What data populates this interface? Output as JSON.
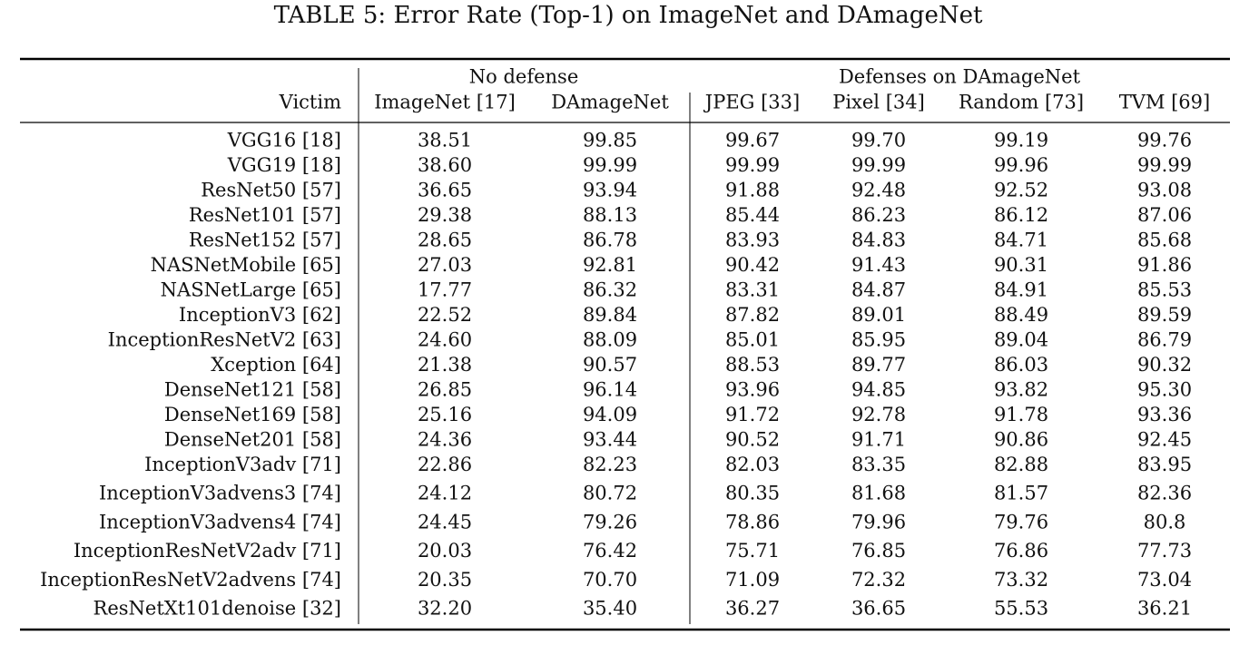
{
  "title": "TABLE 5: Error Rate (Top-1) on ImageNet and DAmageNet",
  "table": {
    "groups": [
      "No defense",
      "Defenses on DAmageNet"
    ],
    "columns": [
      "Victim",
      "ImageNet [17]",
      "DAmageNet",
      "JPEG [33]",
      "Pixel [34]",
      "Random [73]",
      "TVM [69]"
    ],
    "rows": [
      [
        "VGG16 [18]",
        "38.51",
        "99.85",
        "99.67",
        "99.70",
        "99.19",
        "99.76"
      ],
      [
        "VGG19 [18]",
        "38.60",
        "99.99",
        "99.99",
        "99.99",
        "99.96",
        "99.99"
      ],
      [
        "ResNet50 [57]",
        "36.65",
        "93.94",
        "91.88",
        "92.48",
        "92.52",
        "93.08"
      ],
      [
        "ResNet101 [57]",
        "29.38",
        "88.13",
        "85.44",
        "86.23",
        "86.12",
        "87.06"
      ],
      [
        "ResNet152 [57]",
        "28.65",
        "86.78",
        "83.93",
        "84.83",
        "84.71",
        "85.68"
      ],
      [
        "NASNetMobile [65]",
        "27.03",
        "92.81",
        "90.42",
        "91.43",
        "90.31",
        "91.86"
      ],
      [
        "NASNetLarge [65]",
        "17.77",
        "86.32",
        "83.31",
        "84.87",
        "84.91",
        "85.53"
      ],
      [
        "InceptionV3 [62]",
        "22.52",
        "89.84",
        "87.82",
        "89.01",
        "88.49",
        "89.59"
      ],
      [
        "InceptionResNetV2 [63]",
        "24.60",
        "88.09",
        "85.01",
        "85.95",
        "89.04",
        "86.79"
      ],
      [
        "Xception [64]",
        "21.38",
        "90.57",
        "88.53",
        "89.77",
        "86.03",
        "90.32"
      ],
      [
        "DenseNet121 [58]",
        "26.85",
        "96.14",
        "93.96",
        "94.85",
        "93.82",
        "95.30"
      ],
      [
        "DenseNet169 [58]",
        "25.16",
        "94.09",
        "91.72",
        "92.78",
        "91.78",
        "93.36"
      ],
      [
        "DenseNet201 [58]",
        "24.36",
        "93.44",
        "90.52",
        "91.71",
        "90.86",
        "92.45"
      ],
      [
        "InceptionV3adv [71]",
        "22.86",
        "82.23",
        "82.03",
        "83.35",
        "82.88",
        "83.95"
      ],
      [
        "InceptionV3advens3 [74]",
        "24.12",
        "80.72",
        "80.35",
        "81.68",
        "81.57",
        "82.36"
      ],
      [
        "InceptionV3advens4 [74]",
        "24.45",
        "79.26",
        "78.86",
        "79.96",
        "79.76",
        "80.8"
      ],
      [
        "InceptionResNetV2adv [71]",
        "20.03",
        "76.42",
        "75.71",
        "76.85",
        "76.86",
        "77.73"
      ],
      [
        "InceptionResNetV2advens [74]",
        "20.35",
        "70.70",
        "71.09",
        "72.32",
        "73.32",
        "73.04"
      ],
      [
        "ResNetXt101denoise [32]",
        "32.20",
        "35.40",
        "36.27",
        "36.65",
        "55.53",
        "36.21"
      ]
    ]
  }
}
